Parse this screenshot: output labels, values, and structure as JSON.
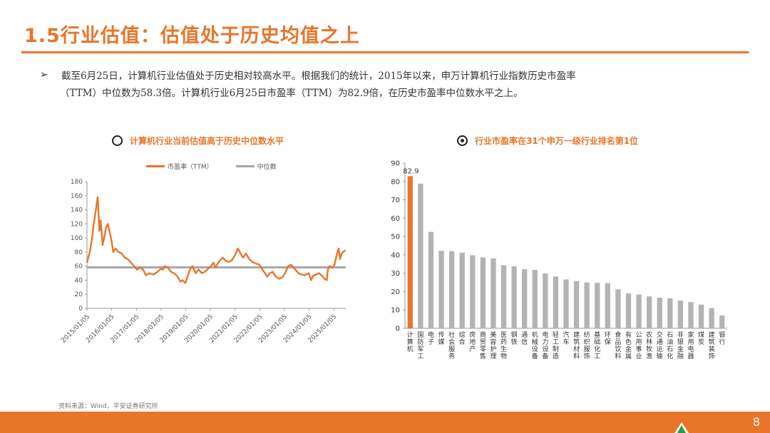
{
  "title": "1.5行业估值：估值处于历史均值之上",
  "bullet": {
    "line1": "截至6月25日，计算机行业估值处于历史相对较高水平。根据我们的统计，2015年以来，申万计算机行业指数历史市盈率",
    "line2": "（TTM）中位数为58.3倍。计算机行业6月25日市盈率（TTM）为82.9倍，在历史市盈率中位数水平之上。"
  },
  "left_heading": "计算机行业当前估值高于历史中位数水平",
  "right_heading": "行业市盈率在31个申万一级行业排名第1位",
  "source": "资料来源：Wind，平安证券研究所",
  "page_number": "8",
  "colors": {
    "accent": "#e8752a",
    "median": "#a6a6a6",
    "bar_other": "#b3b3b3"
  },
  "chart_data": [
    {
      "type": "line",
      "legend": [
        "市盈率（TTM）",
        "中位数"
      ],
      "legend_position": "top",
      "ylim": [
        0,
        180
      ],
      "yticks": [
        "0",
        "20",
        "40",
        "60",
        "80",
        "100",
        "120",
        "140",
        "160",
        "180"
      ],
      "xticks": [
        "2015/01/05",
        "2016/01/05",
        "2017/01/05",
        "2018/01/05",
        "2019/01/05",
        "2020/01/05",
        "2021/01/05",
        "2022/01/05",
        "2023/01/05",
        "2024/01/05",
        "2025/01/05"
      ],
      "median": 58.3,
      "series": [
        {
          "name": "市盈率（TTM）",
          "x": [
            "2015-01-05",
            "2015-02-15",
            "2015-03-15",
            "2015-04-15",
            "2015-05-10",
            "2015-06-01",
            "2015-06-12",
            "2015-07-08",
            "2015-07-25",
            "2015-08-25",
            "2015-09-15",
            "2015-10-15",
            "2015-11-10",
            "2015-12-15",
            "2016-01-05",
            "2016-01-28",
            "2016-03-01",
            "2016-04-15",
            "2016-06-01",
            "2016-07-15",
            "2016-09-01",
            "2016-10-15",
            "2016-12-01",
            "2017-01-15",
            "2017-03-01",
            "2017-04-15",
            "2017-05-25",
            "2017-07-15",
            "2017-09-15",
            "2017-11-15",
            "2017-12-31",
            "2018-01-31",
            "2018-03-01",
            "2018-04-15",
            "2018-06-01",
            "2018-07-15",
            "2018-09-01",
            "2018-10-18",
            "2018-11-15",
            "2018-12-31",
            "2019-02-01",
            "2019-03-10",
            "2019-04-15",
            "2019-06-01",
            "2019-07-15",
            "2019-09-01",
            "2019-10-15",
            "2019-12-01",
            "2020-01-15",
            "2020-02-20",
            "2020-03-20",
            "2020-05-01",
            "2020-06-15",
            "2020-07-10",
            "2020-08-15",
            "2020-10-01",
            "2020-11-15",
            "2021-01-01",
            "2021-02-15",
            "2021-03-15",
            "2021-05-01",
            "2021-06-15",
            "2021-08-01",
            "2021-09-15",
            "2021-11-01",
            "2021-12-31",
            "2022-02-15",
            "2022-04-26",
            "2022-06-01",
            "2022-07-15",
            "2022-09-01",
            "2022-10-15",
            "2022-12-01",
            "2023-01-15",
            "2023-03-01",
            "2023-04-15",
            "2023-05-15",
            "2023-06-15",
            "2023-08-01",
            "2023-09-15",
            "2023-11-01",
            "2023-12-31",
            "2024-02-05",
            "2024-03-01",
            "2024-04-15",
            "2024-06-01",
            "2024-07-15",
            "2024-08-20",
            "2024-09-23",
            "2024-10-08",
            "2024-11-01",
            "2024-12-15",
            "2025-01-15",
            "2025-02-15",
            "2025-03-15",
            "2025-04-08",
            "2025-05-01",
            "2025-06-25"
          ],
          "values": [
            65,
            80,
            95,
            120,
            135,
            150,
            158,
            110,
            125,
            90,
            100,
            115,
            120,
            105,
            95,
            80,
            85,
            80,
            78,
            72,
            70,
            65,
            60,
            55,
            58,
            55,
            47,
            50,
            48,
            52,
            56,
            55,
            60,
            58,
            52,
            50,
            46,
            38,
            40,
            36,
            45,
            55,
            60,
            50,
            55,
            50,
            52,
            56,
            60,
            65,
            58,
            65,
            70,
            72,
            68,
            66,
            68,
            75,
            85,
            80,
            72,
            78,
            70,
            66,
            64,
            62,
            55,
            45,
            50,
            52,
            45,
            42,
            44,
            50,
            60,
            62,
            58,
            55,
            50,
            48,
            47,
            50,
            40,
            46,
            48,
            50,
            46,
            42,
            40,
            55,
            60,
            58,
            62,
            75,
            85,
            70,
            78,
            82.9
          ]
        }
      ]
    },
    {
      "type": "bar",
      "ylim": [
        0,
        90
      ],
      "yticks": [
        "0",
        "10",
        "20",
        "30",
        "40",
        "50",
        "60",
        "70",
        "80",
        "90"
      ],
      "categories": [
        "计算机",
        "国防军工",
        "电子",
        "传媒",
        "社会服务",
        "综合",
        "房地产",
        "商贸零售",
        "美容护理",
        "医药生物",
        "钢铁",
        "通信",
        "机械设备",
        "电力设备",
        "轻工制造",
        "汽车",
        "建筑材料",
        "纺织服饰",
        "基础化工",
        "环保",
        "食品饮料",
        "有色金属",
        "公用事业",
        "农林牧渔",
        "交通运输",
        "石油石化",
        "非银金融",
        "家用电器",
        "煤炭",
        "建筑装饰",
        "银行"
      ],
      "values": [
        82.9,
        78.8,
        52.5,
        42.2,
        42.0,
        41.2,
        39.8,
        38.6,
        38.1,
        34.4,
        33.8,
        32.2,
        31.8,
        29.9,
        28.2,
        26.6,
        25.7,
        25.0,
        24.8,
        24.6,
        21.2,
        19.0,
        18.4,
        17.4,
        16.7,
        16.4,
        15.1,
        14.3,
        12.9,
        11.0,
        7.0
      ],
      "data_labels": [
        "82.9"
      ]
    }
  ]
}
